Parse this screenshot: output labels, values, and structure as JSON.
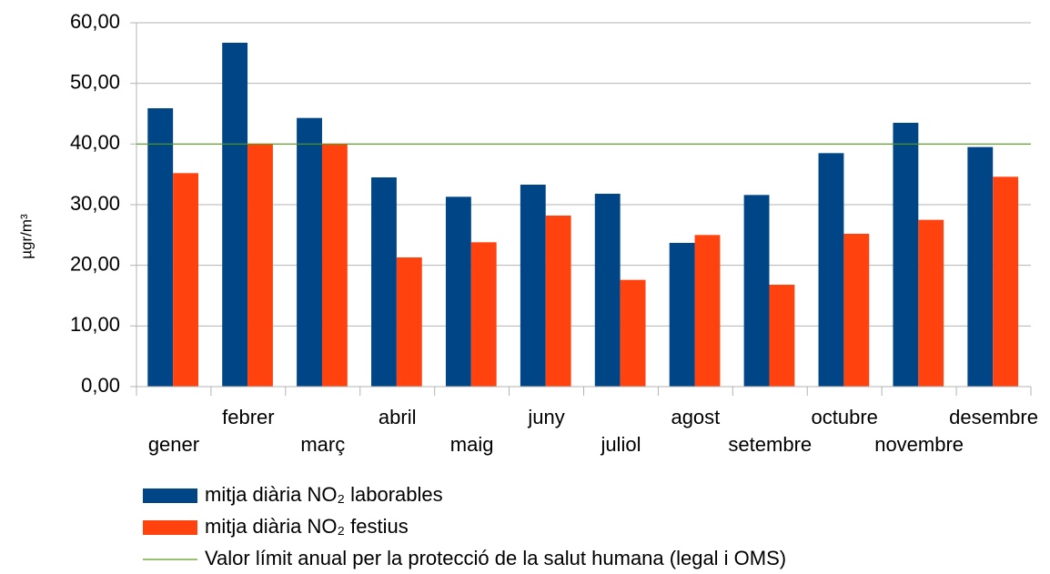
{
  "chart_data": {
    "type": "bar",
    "y_label": "µgr/m³",
    "categories": [
      "gener",
      "febrer",
      "març",
      "abril",
      "maig",
      "juny",
      "juliol",
      "agost",
      "setembre",
      "octubre",
      "novembre",
      "desembre"
    ],
    "series": [
      {
        "name": "mitja diària NO₂  laborables",
        "color": "#004586",
        "values": [
          45.9,
          56.7,
          44.3,
          34.5,
          31.3,
          33.3,
          31.8,
          23.7,
          31.6,
          38.5,
          43.5,
          39.5
        ]
      },
      {
        "name": "mitja diària NO₂  festius",
        "color": "#ff420e",
        "values": [
          35.2,
          40,
          40,
          21.3,
          23.8,
          28.2,
          17.6,
          25,
          16.8,
          25.2,
          27.5,
          34.6
        ]
      }
    ],
    "reference_line": {
      "name": "Valor límit anual per la protecció de la salut humana (legal i OMS)",
      "value": 40,
      "color": "#579d1c"
    },
    "ylim": [
      0,
      60
    ],
    "yticks": [
      {
        "value": 0,
        "label": "0,00"
      },
      {
        "value": 10,
        "label": "10,00"
      },
      {
        "value": 20,
        "label": "20,00"
      },
      {
        "value": 30,
        "label": "30,00"
      },
      {
        "value": 40,
        "label": "40,00"
      },
      {
        "value": 50,
        "label": "50,00"
      },
      {
        "value": 60,
        "label": "60,00"
      }
    ],
    "grid": true
  }
}
